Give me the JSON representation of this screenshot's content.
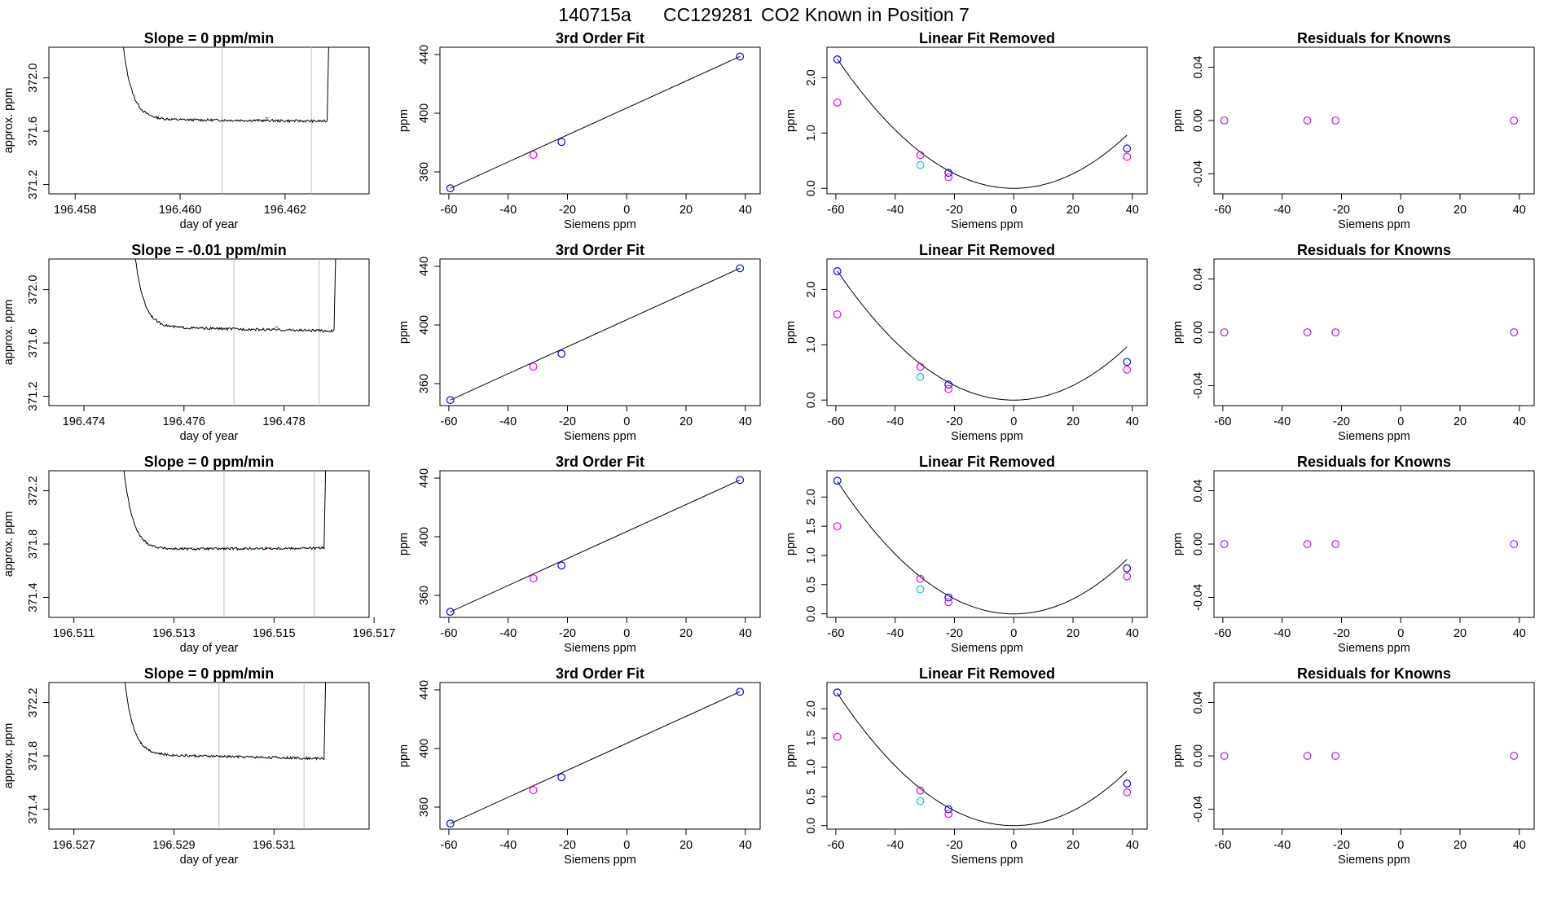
{
  "page": {
    "title_parts": [
      "140715a",
      "CC129281",
      "CO2 Known in Position  7"
    ]
  },
  "colors": {
    "trace": "#000000",
    "fit_line": "#000000",
    "vline": "#bebebe",
    "blue": "#0000ff",
    "magenta": "#ee00ee",
    "cyan": "#00cccc",
    "purple": "#a020f0",
    "axis": "#000000"
  },
  "chart_data": [
    {
      "id": "r1-trace",
      "type": "line",
      "title": "Slope =  0  ppm/min",
      "xlabel": "day of year",
      "ylabel": "approx. ppm",
      "xlim": [
        196.4575,
        196.4636
      ],
      "ylim": [
        371.13,
        372.23
      ],
      "xticks": [
        196.458,
        196.46,
        196.462
      ],
      "xtick_labels": [
        "196.458",
        "196.460",
        "196.462"
      ],
      "yticks": [
        371.2,
        371.6,
        372.0
      ],
      "ytick_labels": [
        "371.2",
        "371.6",
        "372.0"
      ],
      "vlines": [
        196.4608,
        196.4625
      ],
      "trace": {
        "x0": 196.4589,
        "x1": 196.4628,
        "floor": 371.69,
        "step": 371.675,
        "sx0": 196.4608,
        "sx1": 196.4625,
        "mid": 371.7
      }
    },
    {
      "id": "r1-fit",
      "type": "scatter",
      "title": "3rd Order Fit",
      "xlabel": "Siemens ppm",
      "ylabel": "ppm",
      "xlim": [
        -63,
        45
      ],
      "ylim": [
        345,
        445
      ],
      "xticks": [
        -60,
        -40,
        -20,
        0,
        20,
        40
      ],
      "xtick_labels": [
        "-60",
        "-40",
        "-20",
        "0",
        "20",
        "40"
      ],
      "yticks": [
        360,
        400,
        440
      ],
      "ytick_labels": [
        "360",
        "400",
        "440"
      ],
      "line": {
        "x": [
          -59.5,
          38.2
        ],
        "y": [
          348.8,
          438.7
        ]
      },
      "points": [
        {
          "x": -59.5,
          "y": 348.8,
          "color": "blue"
        },
        {
          "x": -31.5,
          "y": 371.6,
          "color": "magenta"
        },
        {
          "x": -22.0,
          "y": 380.4,
          "color": "blue"
        },
        {
          "x": 38.2,
          "y": 438.7,
          "color": "blue"
        }
      ]
    },
    {
      "id": "r1-lin",
      "type": "scatter",
      "title": "Linear Fit Removed",
      "xlabel": "Siemens ppm",
      "ylabel": "ppm",
      "xlim": [
        -63,
        45
      ],
      "ylim": [
        -0.1,
        2.55
      ],
      "xticks": [
        -60,
        -40,
        -20,
        0,
        20,
        40
      ],
      "xtick_labels": [
        "-60",
        "-40",
        "-20",
        "0",
        "20",
        "40"
      ],
      "yticks": [
        0.0,
        1.0,
        2.0
      ],
      "ytick_labels": [
        "0.0",
        "1.0",
        "2.0"
      ],
      "curve": {
        "c2": 0.00066,
        "c3": 0.0
      },
      "points": [
        {
          "x": -59.5,
          "y": 2.33,
          "color": "blue"
        },
        {
          "x": -59.5,
          "y": 1.55,
          "color": "magenta"
        },
        {
          "x": -31.5,
          "y": 0.6,
          "color": "magenta"
        },
        {
          "x": -31.5,
          "y": 0.42,
          "color": "cyan"
        },
        {
          "x": -22.0,
          "y": 0.28,
          "color": "blue"
        },
        {
          "x": -22.0,
          "y": 0.2,
          "color": "magenta"
        },
        {
          "x": 38.2,
          "y": 0.72,
          "color": "blue"
        },
        {
          "x": 38.2,
          "y": 0.57,
          "color": "magenta"
        }
      ]
    },
    {
      "id": "r1-res",
      "type": "scatter",
      "title": "Residuals for Knowns",
      "xlabel": "Siemens ppm",
      "ylabel": "ppm",
      "xlim": [
        -63,
        45
      ],
      "ylim": [
        -0.055,
        0.055
      ],
      "xticks": [
        -60,
        -40,
        -20,
        0,
        20,
        40
      ],
      "xtick_labels": [
        "-60",
        "-40",
        "-20",
        "0",
        "20",
        "40"
      ],
      "yticks": [
        -0.04,
        0.0,
        0.04
      ],
      "ytick_labels": [
        "-0.04",
        "0.00",
        "0.04"
      ],
      "points": [
        {
          "x": -59.5,
          "y": 0.0,
          "color": "purple"
        },
        {
          "x": -31.5,
          "y": 0.0,
          "color": "purple"
        },
        {
          "x": -22.0,
          "y": 0.0,
          "color": "purple"
        },
        {
          "x": 38.2,
          "y": 0.0,
          "color": "purple"
        }
      ]
    },
    {
      "id": "r2-trace",
      "type": "line",
      "title": "Slope =  -0.01  ppm/min",
      "xlabel": "day of year",
      "ylabel": "approx. ppm",
      "xlim": [
        196.4733,
        196.4797
      ],
      "ylim": [
        371.13,
        372.23
      ],
      "xticks": [
        196.474,
        196.476,
        196.478
      ],
      "xtick_labels": [
        "196.474",
        "196.476",
        "196.478"
      ],
      "yticks": [
        371.2,
        371.6,
        372.0
      ],
      "ytick_labels": [
        "371.2",
        "371.6",
        "372.0"
      ],
      "vlines": [
        196.477,
        196.4787
      ],
      "trace": {
        "x0": 196.475,
        "x1": 196.479,
        "floor": 371.72,
        "step": 371.69,
        "sx0": 196.477,
        "sx1": 196.4787,
        "mid": 371.72
      }
    },
    {
      "id": "r2-fit",
      "type": "scatter",
      "title": "3rd Order Fit",
      "xlabel": "Siemens ppm",
      "ylabel": "ppm",
      "xlim": [
        -63,
        45
      ],
      "ylim": [
        345,
        445
      ],
      "xticks": [
        -60,
        -40,
        -20,
        0,
        20,
        40
      ],
      "xtick_labels": [
        "-60",
        "-40",
        "-20",
        "0",
        "20",
        "40"
      ],
      "yticks": [
        360,
        400,
        440
      ],
      "ytick_labels": [
        "360",
        "400",
        "440"
      ],
      "line": {
        "x": [
          -59.5,
          38.2
        ],
        "y": [
          348.8,
          438.7
        ]
      },
      "points": [
        {
          "x": -59.5,
          "y": 348.8,
          "color": "blue"
        },
        {
          "x": -31.5,
          "y": 371.6,
          "color": "magenta"
        },
        {
          "x": -22.0,
          "y": 380.4,
          "color": "blue"
        },
        {
          "x": 38.2,
          "y": 438.7,
          "color": "blue"
        }
      ]
    },
    {
      "id": "r2-lin",
      "type": "scatter",
      "title": "Linear Fit Removed",
      "xlabel": "Siemens ppm",
      "ylabel": "ppm",
      "xlim": [
        -63,
        45
      ],
      "ylim": [
        -0.1,
        2.55
      ],
      "xticks": [
        -60,
        -40,
        -20,
        0,
        20,
        40
      ],
      "xtick_labels": [
        "-60",
        "-40",
        "-20",
        "0",
        "20",
        "40"
      ],
      "yticks": [
        0.0,
        1.0,
        2.0
      ],
      "ytick_labels": [
        "0.0",
        "1.0",
        "2.0"
      ],
      "curve": {
        "c2": 0.00066,
        "c3": 0.0
      },
      "points": [
        {
          "x": -59.5,
          "y": 2.33,
          "color": "blue"
        },
        {
          "x": -59.5,
          "y": 1.55,
          "color": "magenta"
        },
        {
          "x": -31.5,
          "y": 0.6,
          "color": "magenta"
        },
        {
          "x": -31.5,
          "y": 0.42,
          "color": "cyan"
        },
        {
          "x": -22.0,
          "y": 0.28,
          "color": "blue"
        },
        {
          "x": -22.0,
          "y": 0.2,
          "color": "magenta"
        },
        {
          "x": 38.2,
          "y": 0.69,
          "color": "blue"
        },
        {
          "x": 38.2,
          "y": 0.55,
          "color": "magenta"
        }
      ]
    },
    {
      "id": "r2-res",
      "type": "scatter",
      "title": "Residuals for Knowns",
      "xlabel": "Siemens ppm",
      "ylabel": "ppm",
      "xlim": [
        -63,
        45
      ],
      "ylim": [
        -0.055,
        0.055
      ],
      "xticks": [
        -60,
        -40,
        -20,
        0,
        20,
        40
      ],
      "xtick_labels": [
        "-60",
        "-40",
        "-20",
        "0",
        "20",
        "40"
      ],
      "yticks": [
        -0.04,
        0.0,
        0.04
      ],
      "ytick_labels": [
        "-0.04",
        "0.00",
        "0.04"
      ],
      "points": [
        {
          "x": -59.5,
          "y": 0.0,
          "color": "purple"
        },
        {
          "x": -31.5,
          "y": 0.0,
          "color": "purple"
        },
        {
          "x": -22.0,
          "y": 0.0,
          "color": "purple"
        },
        {
          "x": 38.2,
          "y": 0.0,
          "color": "purple"
        }
      ]
    },
    {
      "id": "r3-trace",
      "type": "line",
      "title": "Slope =  0  ppm/min",
      "xlabel": "day of year",
      "ylabel": "approx. ppm",
      "xlim": [
        196.5105,
        196.5169
      ],
      "ylim": [
        371.25,
        372.35
      ],
      "xticks": [
        196.511,
        196.513,
        196.515,
        196.517
      ],
      "xtick_labels": [
        "196.511",
        "196.513",
        "196.515",
        "196.517"
      ],
      "yticks": [
        371.4,
        371.8,
        372.2
      ],
      "ytick_labels": [
        "371.4",
        "371.8",
        "372.2"
      ],
      "vlines": [
        196.514,
        196.5158
      ],
      "trace": {
        "x0": 196.512,
        "x1": 196.516,
        "floor": 371.76,
        "step": 371.77,
        "sx0": 196.514,
        "sx1": 196.5158,
        "mid": 371.77
      }
    },
    {
      "id": "r3-fit",
      "type": "scatter",
      "title": "3rd Order Fit",
      "xlabel": "Siemens ppm",
      "ylabel": "ppm",
      "xlim": [
        -63,
        45
      ],
      "ylim": [
        345,
        445
      ],
      "xticks": [
        -60,
        -40,
        -20,
        0,
        20,
        40
      ],
      "xtick_labels": [
        "-60",
        "-40",
        "-20",
        "0",
        "20",
        "40"
      ],
      "yticks": [
        360,
        400,
        440
      ],
      "ytick_labels": [
        "360",
        "400",
        "440"
      ],
      "line": {
        "x": [
          -59.5,
          38.2
        ],
        "y": [
          348.8,
          438.7
        ]
      },
      "points": [
        {
          "x": -59.5,
          "y": 348.8,
          "color": "blue"
        },
        {
          "x": -31.5,
          "y": 371.6,
          "color": "magenta"
        },
        {
          "x": -22.0,
          "y": 380.4,
          "color": "blue"
        },
        {
          "x": 38.2,
          "y": 438.7,
          "color": "blue"
        }
      ]
    },
    {
      "id": "r3-lin",
      "type": "scatter",
      "title": "Linear Fit Removed",
      "xlabel": "Siemens ppm",
      "ylabel": "ppm",
      "xlim": [
        -63,
        45
      ],
      "ylim": [
        -0.06,
        2.45
      ],
      "xticks": [
        -60,
        -40,
        -20,
        0,
        20,
        40
      ],
      "xtick_labels": [
        "-60",
        "-40",
        "-20",
        "0",
        "20",
        "40"
      ],
      "yticks": [
        0.0,
        0.5,
        1.0,
        1.5,
        2.0
      ],
      "ytick_labels": [
        "0.0",
        "0.5",
        "1.0",
        "1.5",
        "2.0"
      ],
      "curve": {
        "c2": 0.00064,
        "c3": 0.0
      },
      "points": [
        {
          "x": -59.5,
          "y": 2.28,
          "color": "blue"
        },
        {
          "x": -59.5,
          "y": 1.5,
          "color": "magenta"
        },
        {
          "x": -31.5,
          "y": 0.6,
          "color": "magenta"
        },
        {
          "x": -31.5,
          "y": 0.42,
          "color": "cyan"
        },
        {
          "x": -22.0,
          "y": 0.28,
          "color": "blue"
        },
        {
          "x": -22.0,
          "y": 0.2,
          "color": "magenta"
        },
        {
          "x": 38.2,
          "y": 0.78,
          "color": "blue"
        },
        {
          "x": 38.2,
          "y": 0.64,
          "color": "magenta"
        }
      ]
    },
    {
      "id": "r3-res",
      "type": "scatter",
      "title": "Residuals for Knowns",
      "xlabel": "Siemens ppm",
      "ylabel": "ppm",
      "xlim": [
        -63,
        45
      ],
      "ylim": [
        -0.055,
        0.055
      ],
      "xticks": [
        -60,
        -40,
        -20,
        0,
        20,
        40
      ],
      "xtick_labels": [
        "-60",
        "-40",
        "-20",
        "0",
        "20",
        "40"
      ],
      "yticks": [
        -0.04,
        0.0,
        0.04
      ],
      "ytick_labels": [
        "-0.04",
        "0.00",
        "0.04"
      ],
      "points": [
        {
          "x": -59.5,
          "y": 0.0,
          "color": "purple"
        },
        {
          "x": -31.5,
          "y": 0.0,
          "color": "purple"
        },
        {
          "x": -22.0,
          "y": 0.0,
          "color": "purple"
        },
        {
          "x": 38.2,
          "y": 0.0,
          "color": "purple"
        }
      ]
    },
    {
      "id": "r4-trace",
      "type": "line",
      "title": "Slope =  0  ppm/min",
      "xlabel": "day of year",
      "ylabel": "approx. ppm",
      "xlim": [
        196.5265,
        196.5329
      ],
      "ylim": [
        371.25,
        372.35
      ],
      "xticks": [
        196.527,
        196.529,
        196.531
      ],
      "xtick_labels": [
        "196.527",
        "196.529",
        "196.531"
      ],
      "yticks": [
        371.4,
        371.8,
        372.2
      ],
      "ytick_labels": [
        "371.4",
        "371.8",
        "372.2"
      ],
      "vlines": [
        196.5299,
        196.5316
      ],
      "trace": {
        "x0": 196.528,
        "x1": 196.532,
        "floor": 371.81,
        "step": 371.78,
        "sx0": 196.5299,
        "sx1": 196.5316,
        "mid": 371.79
      }
    },
    {
      "id": "r4-fit",
      "type": "scatter",
      "title": "3rd Order Fit",
      "xlabel": "Siemens ppm",
      "ylabel": "ppm",
      "xlim": [
        -63,
        45
      ],
      "ylim": [
        345,
        445
      ],
      "xticks": [
        -60,
        -40,
        -20,
        0,
        20,
        40
      ],
      "xtick_labels": [
        "-60",
        "-40",
        "-20",
        "0",
        "20",
        "40"
      ],
      "yticks": [
        360,
        400,
        440
      ],
      "ytick_labels": [
        "360",
        "400",
        "440"
      ],
      "line": {
        "x": [
          -59.5,
          38.2
        ],
        "y": [
          348.8,
          438.7
        ]
      },
      "points": [
        {
          "x": -59.5,
          "y": 348.8,
          "color": "blue"
        },
        {
          "x": -31.5,
          "y": 371.6,
          "color": "magenta"
        },
        {
          "x": -22.0,
          "y": 380.4,
          "color": "blue"
        },
        {
          "x": 38.2,
          "y": 438.7,
          "color": "blue"
        }
      ]
    },
    {
      "id": "r4-lin",
      "type": "scatter",
      "title": "Linear Fit Removed",
      "xlabel": "Siemens ppm",
      "ylabel": "ppm",
      "xlim": [
        -63,
        45
      ],
      "ylim": [
        -0.06,
        2.45
      ],
      "xticks": [
        -60,
        -40,
        -20,
        0,
        20,
        40
      ],
      "xtick_labels": [
        "-60",
        "-40",
        "-20",
        "0",
        "20",
        "40"
      ],
      "yticks": [
        0.0,
        0.5,
        1.0,
        1.5,
        2.0
      ],
      "ytick_labels": [
        "0.0",
        "0.5",
        "1.0",
        "1.5",
        "2.0"
      ],
      "curve": {
        "c2": 0.00064,
        "c3": 0.0
      },
      "points": [
        {
          "x": -59.5,
          "y": 2.28,
          "color": "blue"
        },
        {
          "x": -59.5,
          "y": 1.52,
          "color": "magenta"
        },
        {
          "x": -31.5,
          "y": 0.6,
          "color": "magenta"
        },
        {
          "x": -31.5,
          "y": 0.42,
          "color": "cyan"
        },
        {
          "x": -22.0,
          "y": 0.28,
          "color": "blue"
        },
        {
          "x": -22.0,
          "y": 0.2,
          "color": "magenta"
        },
        {
          "x": 38.2,
          "y": 0.72,
          "color": "blue"
        },
        {
          "x": 38.2,
          "y": 0.57,
          "color": "magenta"
        }
      ]
    },
    {
      "id": "r4-res",
      "type": "scatter",
      "title": "Residuals for Knowns",
      "xlabel": "Siemens ppm",
      "ylabel": "ppm",
      "xlim": [
        -63,
        45
      ],
      "ylim": [
        -0.055,
        0.055
      ],
      "xticks": [
        -60,
        -40,
        -20,
        0,
        20,
        40
      ],
      "xtick_labels": [
        "-60",
        "-40",
        "-20",
        "0",
        "20",
        "40"
      ],
      "yticks": [
        -0.04,
        0.0,
        0.04
      ],
      "ytick_labels": [
        "-0.04",
        "0.00",
        "0.04"
      ],
      "points": [
        {
          "x": -59.5,
          "y": 0.0,
          "color": "purple"
        },
        {
          "x": -31.5,
          "y": 0.0,
          "color": "purple"
        },
        {
          "x": -22.0,
          "y": 0.0,
          "color": "purple"
        },
        {
          "x": 38.2,
          "y": 0.0,
          "color": "purple"
        }
      ]
    }
  ]
}
